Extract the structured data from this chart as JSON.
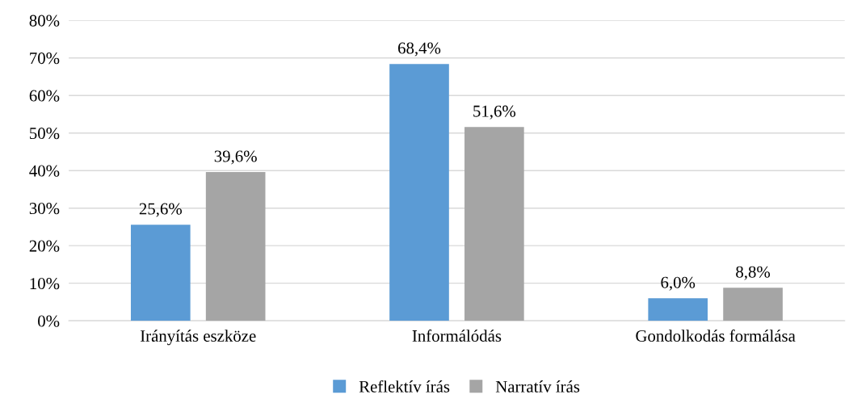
{
  "chart_data": {
    "type": "bar",
    "categories": [
      "Irányítás eszköze",
      "Informálódás",
      "Gondolkodás formálása"
    ],
    "series": [
      {
        "name": "Reflektív írás",
        "color": "#5b9bd5",
        "values": [
          25.6,
          68.4,
          6.0
        ],
        "value_labels": [
          "25,6%",
          "68,4%",
          "6,0%"
        ]
      },
      {
        "name": "Narratív írás",
        "color": "#a5a5a5",
        "values": [
          39.6,
          51.6,
          8.8
        ],
        "value_labels": [
          "39,6%",
          "51,6%",
          "8,8%"
        ]
      }
    ],
    "ylim": [
      0,
      80
    ],
    "yticks": [
      {
        "value": 0,
        "label": "0%"
      },
      {
        "value": 10,
        "label": "10%"
      },
      {
        "value": 20,
        "label": "20%"
      },
      {
        "value": 30,
        "label": "30%"
      },
      {
        "value": 40,
        "label": "40%"
      },
      {
        "value": 50,
        "label": "50%"
      },
      {
        "value": 60,
        "label": "60%"
      },
      {
        "value": 70,
        "label": "70%"
      },
      {
        "value": 80,
        "label": "80%"
      }
    ],
    "grid": "y",
    "legend": "bottom"
  }
}
